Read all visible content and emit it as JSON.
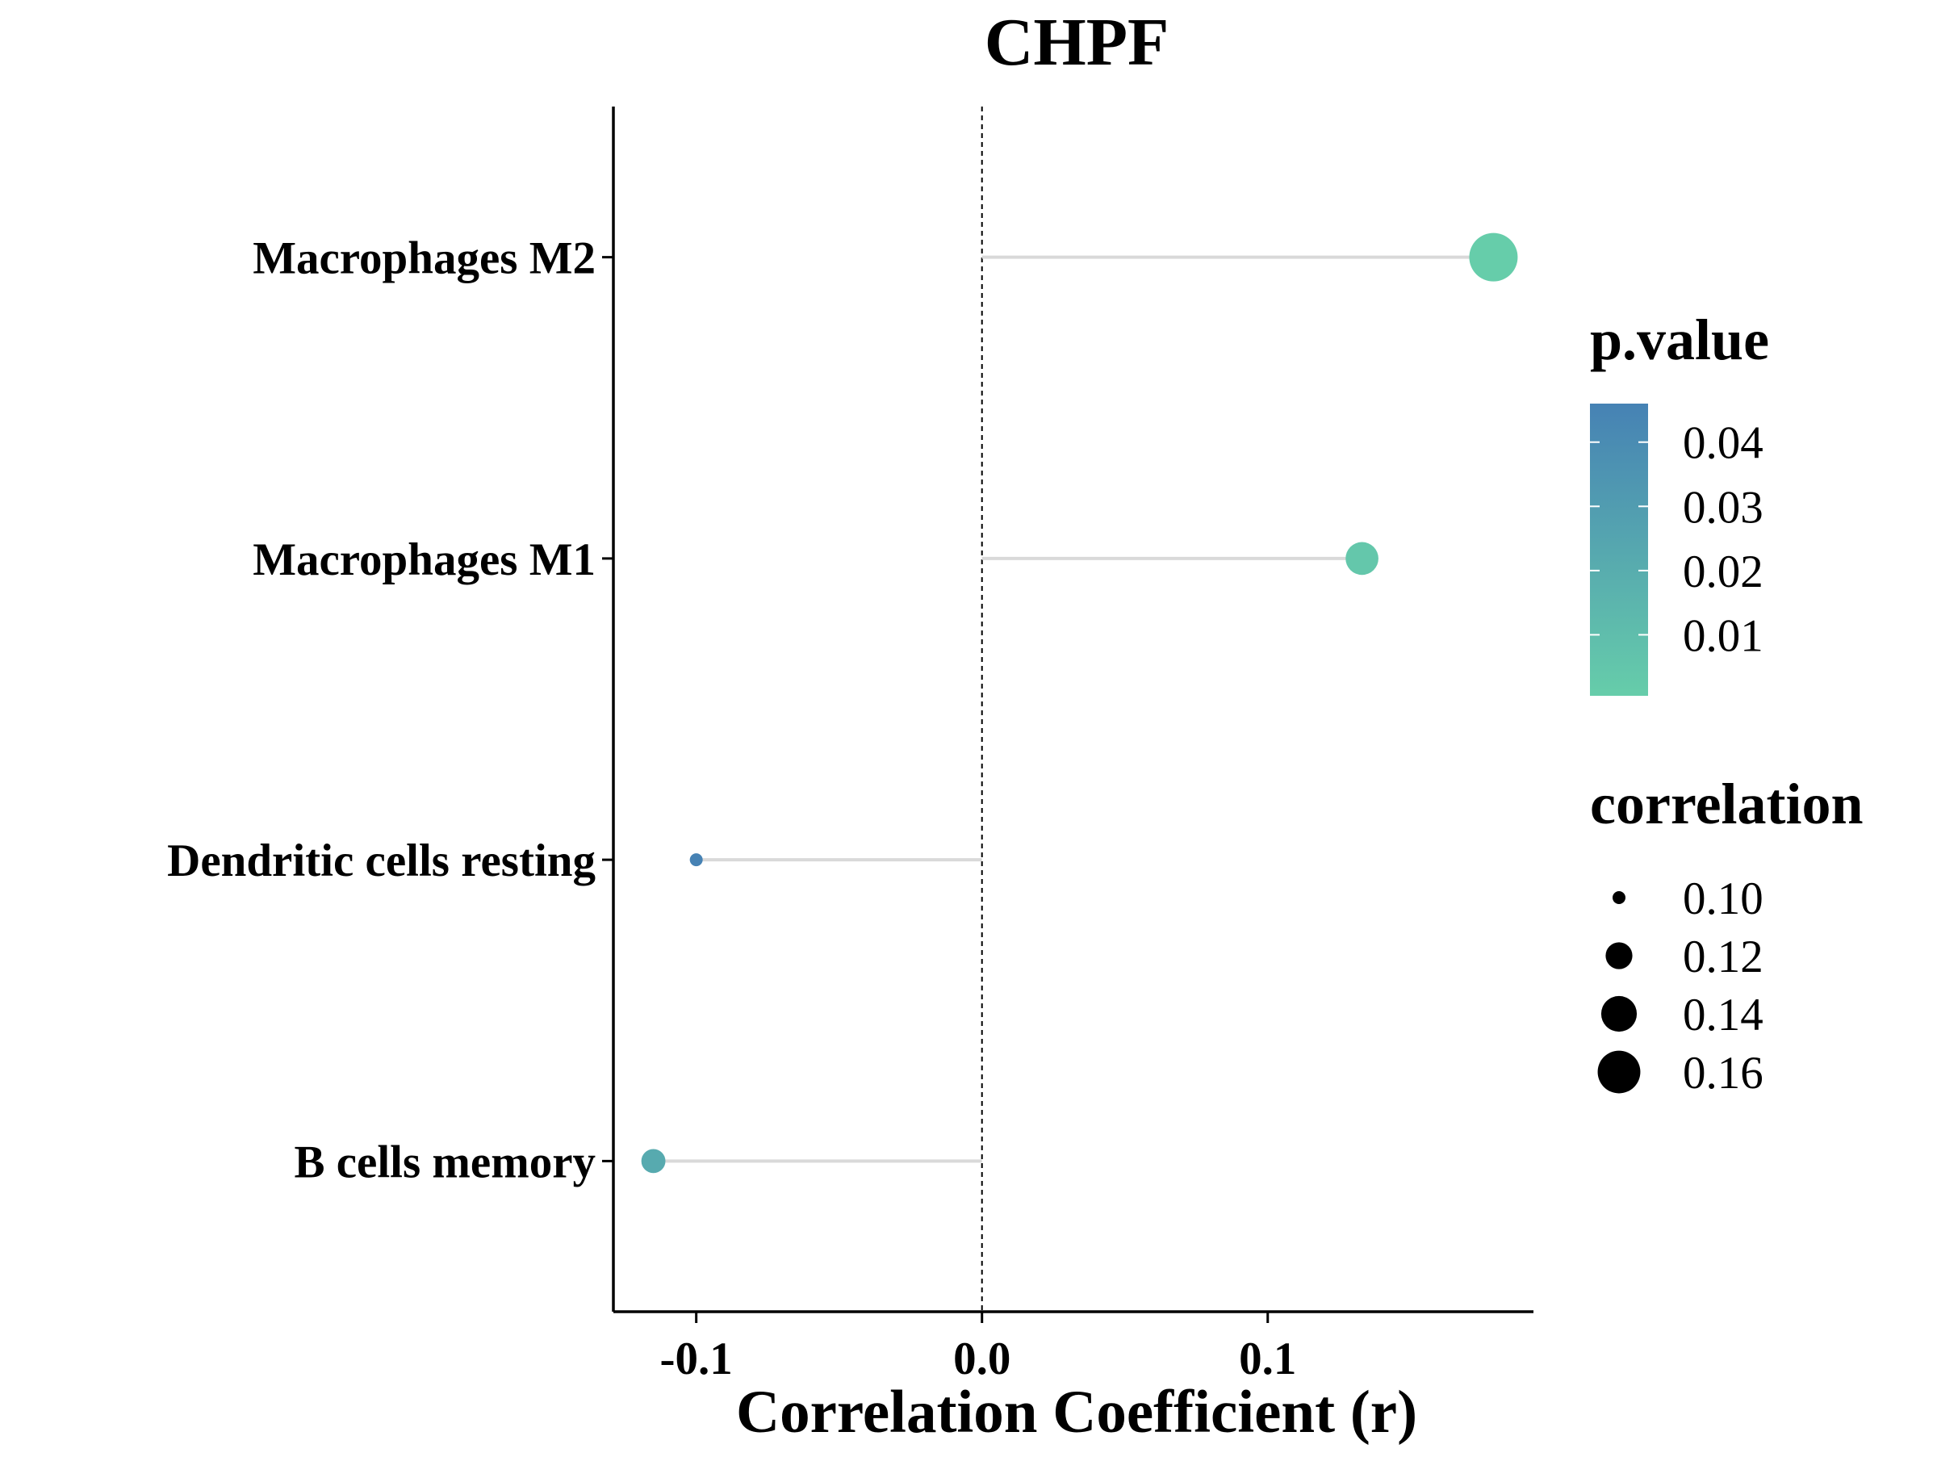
{
  "chart_data": {
    "type": "lollipop",
    "title": "CHPF",
    "xlabel": "Correlation Coefficient (r)",
    "ylabel": "",
    "xlim": [
      -0.129,
      0.193
    ],
    "x_ticks": [
      -0.1,
      0.0,
      0.1
    ],
    "x_tick_labels": [
      "-0.1",
      "0.0",
      "0.1"
    ],
    "reference_line_x": 0.0,
    "categories": [
      "Macrophages M2",
      "Macrophages M1",
      "Dendritic cells resting",
      "B cells memory"
    ],
    "values": [
      0.179,
      0.133,
      -0.1,
      -0.115
    ],
    "p_values": [
      0.0005,
      0.004,
      0.046,
      0.022
    ],
    "stem_color": "#d9d9d9",
    "color_scale": {
      "low_color": "#66cdaa",
      "high_color": "#4682b4",
      "domain": [
        0.0005,
        0.046
      ]
    },
    "size_scale": {
      "domain": [
        0.1,
        0.179
      ],
      "min_radius": 8,
      "max_radius": 30
    },
    "legends": {
      "color": {
        "title": "p.value",
        "ticks": [
          0.04,
          0.03,
          0.02,
          0.01
        ],
        "labels": [
          "0.04",
          "0.03",
          "0.02",
          "0.01"
        ]
      },
      "size": {
        "title": "correlation",
        "values": [
          0.1,
          0.12,
          0.14,
          0.16
        ],
        "labels": [
          "0.10",
          "0.12",
          "0.14",
          "0.16"
        ]
      }
    },
    "grid": false,
    "legend_position": "right"
  }
}
